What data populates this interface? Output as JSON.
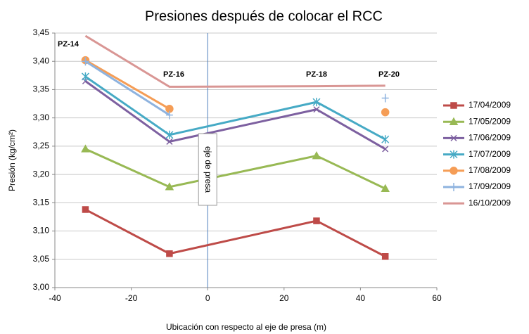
{
  "chart_data": {
    "type": "line",
    "title": "Presiones después de colocar el RCC",
    "xlabel": "Ubicación con respecto al eje de presa (m)",
    "ylabel": "Presión (kg/cm²)",
    "annotations": [
      "PZ-14",
      "PZ-16",
      "PZ-18",
      "PZ-20",
      "eje de presa"
    ],
    "x": [
      -32,
      -10,
      28.5,
      46.5
    ],
    "series": [
      {
        "name": "17/04/2009",
        "color": "#be4b48",
        "marker": "square",
        "values": [
          3.138,
          3.06,
          3.118,
          3.055
        ]
      },
      {
        "name": "17/05/2009",
        "color": "#98b954",
        "marker": "triangle",
        "values": [
          3.245,
          3.178,
          3.233,
          3.175
        ]
      },
      {
        "name": "17/06/2009",
        "color": "#7d60a0",
        "marker": "x",
        "values": [
          3.365,
          3.258,
          3.315,
          3.245
        ]
      },
      {
        "name": "17/07/2009",
        "color": "#46aac5",
        "marker": "star",
        "values": [
          3.373,
          3.27,
          3.328,
          3.262
        ]
      },
      {
        "name": "17/08/2009",
        "color": "#f59d56",
        "marker": "circle",
        "values": [
          3.402,
          3.316,
          null,
          3.31
        ]
      },
      {
        "name": "17/09/2009",
        "color": "#8eb3df",
        "marker": "plus",
        "values": [
          3.4,
          3.305,
          null,
          3.335
        ]
      },
      {
        "name": "16/10/2009",
        "color": "#d99694",
        "marker": "none",
        "values": [
          3.445,
          3.355,
          3.356,
          3.357
        ]
      }
    ],
    "xlim": [
      -40,
      60
    ],
    "xticks": [
      -40,
      -20,
      0,
      20,
      40,
      60
    ],
    "ylim": [
      3.0,
      3.45
    ],
    "yticks": [
      {
        "value": 3.0,
        "label": "3,00"
      },
      {
        "value": 3.05,
        "label": "3,05"
      },
      {
        "value": 3.1,
        "label": "3,10"
      },
      {
        "value": 3.15,
        "label": "3,15"
      },
      {
        "value": 3.2,
        "label": "3,20"
      },
      {
        "value": 3.25,
        "label": "3,25"
      },
      {
        "value": 3.3,
        "label": "3,30"
      },
      {
        "value": 3.35,
        "label": "3,35"
      },
      {
        "value": 3.4,
        "label": "3,40"
      },
      {
        "value": 3.45,
        "label": "3,45"
      }
    ],
    "grid": true,
    "legend": "right"
  }
}
